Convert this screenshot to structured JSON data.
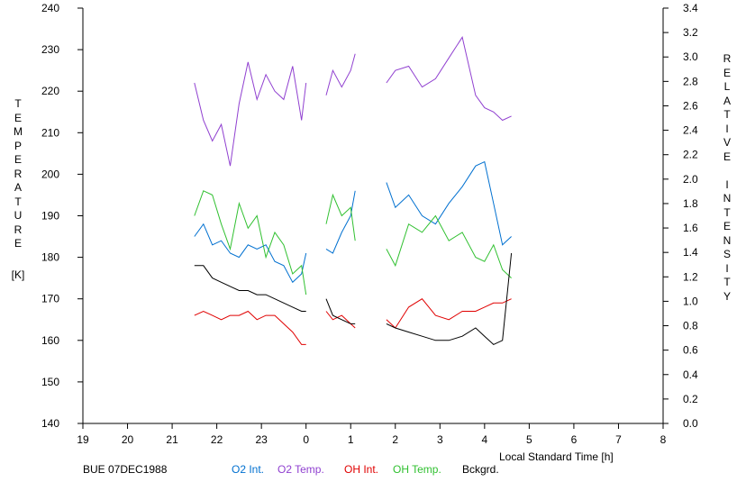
{
  "chart_data": {
    "type": "line",
    "xlabel": "Local Standard Time [h]",
    "ylabel_left": "TEMPERATURE",
    "ylabel_left_unit": "[K]",
    "ylabel_right": "RELATIVE INTENSITY",
    "x_ticks": [
      "19",
      "20",
      "21",
      "22",
      "23",
      "0",
      "1",
      "2",
      "3",
      "4",
      "5",
      "6",
      "7",
      "8"
    ],
    "x_range_hours": [
      19,
      32
    ],
    "y_left_ticks": [
      "240",
      "230",
      "220",
      "210",
      "200",
      "190",
      "180",
      "170",
      "160",
      "150",
      "140"
    ],
    "y_left_range": [
      140,
      240
    ],
    "y_right_ticks": [
      "3.4",
      "3.2",
      "3.0",
      "2.8",
      "2.6",
      "2.4",
      "2.2",
      "2.0",
      "1.8",
      "1.6",
      "1.4",
      "1.2",
      "1.0",
      "0.8",
      "0.6",
      "0.4",
      "0.2",
      "0.0"
    ],
    "y_right_range": [
      0,
      3.4
    ],
    "station_date": "BUE 07DEC1988",
    "series": [
      {
        "name": "O2 Int.",
        "color": "#0070d0",
        "axis": "left",
        "segments": [
          {
            "x": [
              21.5,
              21.7,
              21.9,
              22.1,
              22.3,
              22.5,
              22.7,
              22.9,
              23.1,
              23.3,
              23.5,
              23.7,
              23.9,
              24.0
            ],
            "y": [
              185,
              188,
              183,
              184,
              181,
              180,
              183,
              182,
              183,
              179,
              178,
              174,
              176,
              181
            ]
          },
          {
            "x": [
              24.45,
              24.6,
              24.8,
              25.0,
              25.1
            ],
            "y": [
              182,
              181,
              186,
              190,
              196
            ]
          },
          {
            "x": [
              25.8,
              26.0,
              26.3,
              26.6,
              26.9,
              27.2,
              27.5,
              27.8,
              28.0,
              28.2,
              28.4,
              28.6
            ],
            "y": [
              198,
              192,
              195,
              190,
              188,
              193,
              197,
              202,
              203,
              193,
              183,
              185
            ]
          }
        ]
      },
      {
        "name": "O2 Temp.",
        "color": "#9040d0",
        "axis": "left",
        "segments": [
          {
            "x": [
              21.5,
              21.7,
              21.9,
              22.1,
              22.3,
              22.5,
              22.7,
              22.9,
              23.1,
              23.3,
              23.5,
              23.7,
              23.9,
              24.0
            ],
            "y": [
              222,
              213,
              208,
              212,
              202,
              217,
              227,
              218,
              224,
              220,
              218,
              226,
              213,
              222
            ]
          },
          {
            "x": [
              24.45,
              24.6,
              24.8,
              25.0,
              25.1
            ],
            "y": [
              219,
              225,
              221,
              225,
              229
            ]
          },
          {
            "x": [
              25.8,
              26.0,
              26.3,
              26.6,
              26.9,
              27.2,
              27.5,
              27.8,
              28.0,
              28.2,
              28.4,
              28.6
            ],
            "y": [
              222,
              225,
              226,
              221,
              223,
              228,
              233,
              219,
              216,
              215,
              213,
              214
            ]
          }
        ]
      },
      {
        "name": "OH Int.",
        "color": "#e00000",
        "axis": "left",
        "segments": [
          {
            "x": [
              21.5,
              21.7,
              21.9,
              22.1,
              22.3,
              22.5,
              22.7,
              22.9,
              23.1,
              23.3,
              23.5,
              23.7,
              23.9,
              24.0
            ],
            "y": [
              166,
              167,
              166,
              165,
              166,
              166,
              167,
              165,
              166,
              166,
              164,
              162,
              159,
              159
            ]
          },
          {
            "x": [
              24.45,
              24.6,
              24.8,
              25.0,
              25.1
            ],
            "y": [
              167,
              165,
              166,
              164,
              163
            ]
          },
          {
            "x": [
              25.8,
              26.0,
              26.3,
              26.6,
              26.9,
              27.2,
              27.5,
              27.8,
              28.0,
              28.2,
              28.4,
              28.6
            ],
            "y": [
              165,
              163,
              168,
              170,
              166,
              165,
              167,
              167,
              168,
              169,
              169,
              170
            ]
          }
        ]
      },
      {
        "name": "OH Temp.",
        "color": "#30c030",
        "axis": "left",
        "segments": [
          {
            "x": [
              21.5,
              21.7,
              21.9,
              22.1,
              22.3,
              22.5,
              22.7,
              22.9,
              23.1,
              23.3,
              23.5,
              23.7,
              23.9,
              24.0
            ],
            "y": [
              190,
              196,
              195,
              188,
              182,
              193,
              187,
              190,
              180,
              186,
              183,
              176,
              178,
              171
            ]
          },
          {
            "x": [
              24.45,
              24.6,
              24.8,
              25.0,
              25.1
            ],
            "y": [
              188,
              195,
              190,
              192,
              184
            ]
          },
          {
            "x": [
              25.8,
              26.0,
              26.3,
              26.6,
              26.9,
              27.2,
              27.5,
              27.8,
              28.0,
              28.2,
              28.4,
              28.6
            ],
            "y": [
              182,
              178,
              188,
              186,
              190,
              184,
              186,
              180,
              179,
              183,
              177,
              175
            ]
          }
        ]
      },
      {
        "name": "Bckgrd.",
        "color": "#000000",
        "axis": "left",
        "segments": [
          {
            "x": [
              21.5,
              21.7,
              21.9,
              22.1,
              22.3,
              22.5,
              22.7,
              22.9,
              23.1,
              23.3,
              23.5,
              23.7,
              23.9,
              24.0
            ],
            "y": [
              178,
              178,
              175,
              174,
              173,
              172,
              172,
              171,
              171,
              170,
              169,
              168,
              167,
              167
            ]
          },
          {
            "x": [
              24.45,
              24.6,
              24.8,
              25.0,
              25.1
            ],
            "y": [
              170,
              166,
              165,
              164,
              164
            ]
          },
          {
            "x": [
              25.8,
              26.0,
              26.3,
              26.6,
              26.9,
              27.2,
              27.5,
              27.8,
              28.0,
              28.2,
              28.4,
              28.6
            ],
            "y": [
              164,
              163,
              162,
              161,
              160,
              160,
              161,
              163,
              161,
              159,
              160,
              181
            ]
          }
        ]
      }
    ]
  }
}
